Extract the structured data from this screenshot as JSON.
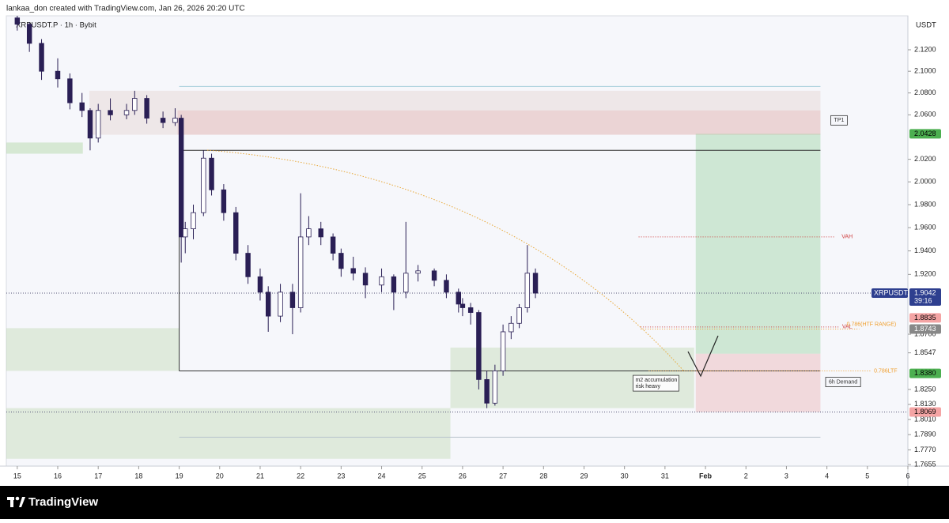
{
  "header": {
    "credit": "lankaa_don created with TradingView.com, Jan 26, 2026 20:20 UTC"
  },
  "footer": {
    "brand": "TradingView"
  },
  "chart_data": {
    "type": "candlestick",
    "title": "XRPUSDT.P · 1h · Bybit",
    "y_unit": "USDT",
    "log": true,
    "up_color": "#ffffff",
    "down_color": "#2a1f55",
    "ylim": [
      1.7643,
      2.152
    ],
    "xlim": [
      -0.27,
      22
    ],
    "yticks": [
      {
        "value": 2.12,
        "label": "2.1200"
      },
      {
        "value": 2.1,
        "label": "2.1000"
      },
      {
        "value": 2.08,
        "label": "2.0800"
      },
      {
        "value": 2.06,
        "label": "2.0600"
      },
      {
        "value": 2.02,
        "label": "2.0200"
      },
      {
        "value": 2.0,
        "label": "2.0000"
      },
      {
        "value": 1.98,
        "label": "1.9800"
      },
      {
        "value": 1.96,
        "label": "1.9600"
      },
      {
        "value": 1.94,
        "label": "1.9400"
      },
      {
        "value": 1.92,
        "label": "1.9200"
      },
      {
        "value": 1.87,
        "label": "1.8700"
      },
      {
        "value": 1.8547,
        "label": "1.8547"
      },
      {
        "value": 1.825,
        "label": "1.8250"
      },
      {
        "value": 1.813,
        "label": "1.8130"
      },
      {
        "value": 1.801,
        "label": "1.8010"
      },
      {
        "value": 1.789,
        "label": "1.7890"
      },
      {
        "value": 1.777,
        "label": "1.7770"
      },
      {
        "value": 1.7655,
        "label": "1.7655"
      }
    ],
    "xticks": [
      {
        "value": 0,
        "label": "15"
      },
      {
        "value": 1,
        "label": "16"
      },
      {
        "value": 2,
        "label": "17"
      },
      {
        "value": 3,
        "label": "18"
      },
      {
        "value": 4,
        "label": "19"
      },
      {
        "value": 5,
        "label": "20"
      },
      {
        "value": 6,
        "label": "21"
      },
      {
        "value": 7,
        "label": "22"
      },
      {
        "value": 8,
        "label": "23"
      },
      {
        "value": 9,
        "label": "24"
      },
      {
        "value": 10,
        "label": "25"
      },
      {
        "value": 11,
        "label": "26"
      },
      {
        "value": 12,
        "label": "27"
      },
      {
        "value": 13,
        "label": "28"
      },
      {
        "value": 14,
        "label": "29"
      },
      {
        "value": 15,
        "label": "30"
      },
      {
        "value": 16,
        "label": "31"
      },
      {
        "value": 17,
        "label": "Feb"
      },
      {
        "value": 18,
        "label": "2"
      },
      {
        "value": 19,
        "label": "3"
      },
      {
        "value": 20,
        "label": "4"
      },
      {
        "value": 21,
        "label": "5"
      },
      {
        "value": 22,
        "label": "6"
      }
    ],
    "candles": [
      {
        "t": 0,
        "open": 2.15,
        "high": 2.152,
        "low": 2.138,
        "close": 2.144
      },
      {
        "t": 0.3,
        "open": 2.144,
        "high": 2.146,
        "low": 2.118,
        "close": 2.126
      },
      {
        "t": 0.6,
        "open": 2.126,
        "high": 2.13,
        "low": 2.092,
        "close": 2.1
      },
      {
        "t": 1.0,
        "open": 2.1,
        "high": 2.112,
        "low": 2.085,
        "close": 2.093
      },
      {
        "t": 1.3,
        "open": 2.093,
        "high": 2.098,
        "low": 2.065,
        "close": 2.071
      },
      {
        "t": 1.6,
        "open": 2.071,
        "high": 2.08,
        "low": 2.058,
        "close": 2.064
      },
      {
        "t": 1.8,
        "open": 2.064,
        "high": 2.066,
        "low": 2.028,
        "close": 2.039
      },
      {
        "t": 2.0,
        "open": 2.039,
        "high": 2.07,
        "low": 2.035,
        "close": 2.064
      },
      {
        "t": 2.3,
        "open": 2.064,
        "high": 2.075,
        "low": 2.055,
        "close": 2.06
      },
      {
        "t": 2.7,
        "open": 2.06,
        "high": 2.07,
        "low": 2.056,
        "close": 2.064
      },
      {
        "t": 2.9,
        "open": 2.064,
        "high": 2.082,
        "low": 2.06,
        "close": 2.075
      },
      {
        "t": 3.2,
        "open": 2.075,
        "high": 2.078,
        "low": 2.052,
        "close": 2.057
      },
      {
        "t": 3.6,
        "open": 2.057,
        "high": 2.063,
        "low": 2.048,
        "close": 2.053
      },
      {
        "t": 3.9,
        "open": 2.053,
        "high": 2.066,
        "low": 2.05,
        "close": 2.057
      },
      {
        "t": 4.05,
        "open": 2.057,
        "high": 2.06,
        "low": 1.93,
        "close": 1.952
      },
      {
        "t": 4.15,
        "open": 1.952,
        "high": 1.965,
        "low": 1.938,
        "close": 1.959
      },
      {
        "t": 4.35,
        "open": 1.959,
        "high": 1.98,
        "low": 1.95,
        "close": 1.973
      },
      {
        "t": 4.6,
        "open": 1.973,
        "high": 2.028,
        "low": 1.97,
        "close": 2.021
      },
      {
        "t": 4.8,
        "open": 2.021,
        "high": 2.025,
        "low": 1.988,
        "close": 1.993
      },
      {
        "t": 5.1,
        "open": 1.993,
        "high": 1.998,
        "low": 1.966,
        "close": 1.973
      },
      {
        "t": 5.4,
        "open": 1.973,
        "high": 1.978,
        "low": 1.932,
        "close": 1.938
      },
      {
        "t": 5.7,
        "open": 1.938,
        "high": 1.945,
        "low": 1.912,
        "close": 1.918
      },
      {
        "t": 6.0,
        "open": 1.918,
        "high": 1.925,
        "low": 1.898,
        "close": 1.905
      },
      {
        "t": 6.2,
        "open": 1.905,
        "high": 1.91,
        "low": 1.872,
        "close": 1.885
      },
      {
        "t": 6.5,
        "open": 1.885,
        "high": 1.912,
        "low": 1.88,
        "close": 1.905
      },
      {
        "t": 6.8,
        "open": 1.905,
        "high": 1.912,
        "low": 1.87,
        "close": 1.892
      },
      {
        "t": 7.0,
        "open": 1.892,
        "high": 1.99,
        "low": 1.888,
        "close": 1.952
      },
      {
        "t": 7.2,
        "open": 1.952,
        "high": 1.97,
        "low": 1.945,
        "close": 1.959
      },
      {
        "t": 7.5,
        "open": 1.959,
        "high": 1.965,
        "low": 1.945,
        "close": 1.952
      },
      {
        "t": 7.8,
        "open": 1.952,
        "high": 1.955,
        "low": 1.932,
        "close": 1.938
      },
      {
        "t": 8.0,
        "open": 1.938,
        "high": 1.942,
        "low": 1.918,
        "close": 1.925
      },
      {
        "t": 8.3,
        "open": 1.925,
        "high": 1.935,
        "low": 1.915,
        "close": 1.921
      },
      {
        "t": 8.6,
        "open": 1.921,
        "high": 1.926,
        "low": 1.9,
        "close": 1.911
      },
      {
        "t": 9.0,
        "open": 1.911,
        "high": 1.925,
        "low": 1.905,
        "close": 1.918
      },
      {
        "t": 9.3,
        "open": 1.918,
        "high": 1.92,
        "low": 1.89,
        "close": 1.905
      },
      {
        "t": 9.6,
        "open": 1.905,
        "high": 1.965,
        "low": 1.9,
        "close": 1.921
      },
      {
        "t": 9.9,
        "open": 1.921,
        "high": 1.928,
        "low": 1.914,
        "close": 1.923
      },
      {
        "t": 10.3,
        "open": 1.923,
        "high": 1.925,
        "low": 1.91,
        "close": 1.915
      },
      {
        "t": 10.6,
        "open": 1.915,
        "high": 1.92,
        "low": 1.9,
        "close": 1.905
      },
      {
        "t": 10.9,
        "open": 1.905,
        "high": 1.908,
        "low": 1.888,
        "close": 1.895
      },
      {
        "t": 11.0,
        "open": 1.895,
        "high": 1.9,
        "low": 1.885,
        "close": 1.892
      },
      {
        "t": 11.2,
        "open": 1.892,
        "high": 1.896,
        "low": 1.878,
        "close": 1.888
      },
      {
        "t": 11.4,
        "open": 1.888,
        "high": 1.89,
        "low": 1.825,
        "close": 1.833
      },
      {
        "t": 11.6,
        "open": 1.833,
        "high": 1.84,
        "low": 1.81,
        "close": 1.814
      },
      {
        "t": 11.8,
        "open": 1.814,
        "high": 1.845,
        "low": 1.812,
        "close": 1.84
      },
      {
        "t": 12.0,
        "open": 1.84,
        "high": 1.878,
        "low": 1.836,
        "close": 1.872
      },
      {
        "t": 12.2,
        "open": 1.872,
        "high": 1.885,
        "low": 1.866,
        "close": 1.879
      },
      {
        "t": 12.4,
        "open": 1.879,
        "high": 1.895,
        "low": 1.875,
        "close": 1.892
      },
      {
        "t": 12.6,
        "open": 1.892,
        "high": 1.945,
        "low": 1.888,
        "close": 1.921
      },
      {
        "t": 12.8,
        "open": 1.921,
        "high": 1.925,
        "low": 1.9,
        "close": 1.9042
      }
    ],
    "zones": [
      {
        "t0": 1.78,
        "t1": 19.84,
        "p0": 2.042,
        "p1": 2.082,
        "color": "rgba(205,160,150,0.18)"
      },
      {
        "t0": 3.96,
        "t1": 19.84,
        "p0": 2.042,
        "p1": 2.064,
        "color": "rgba(225,140,140,0.2)"
      },
      {
        "t0": -0.27,
        "t1": 1.62,
        "p0": 2.025,
        "p1": 2.035,
        "color": "rgba(140,200,120,0.3)"
      },
      {
        "t0": -0.27,
        "t1": 4.0,
        "p0": 1.84,
        "p1": 1.875,
        "color": "rgba(140,190,110,0.22)"
      },
      {
        "t0": -0.27,
        "t1": 10.7,
        "p0": 1.77,
        "p1": 1.81,
        "color": "rgba(140,190,110,0.22)"
      },
      {
        "t0": 10.7,
        "t1": 16.72,
        "p0": 1.81,
        "p1": 1.859,
        "color": "rgba(140,190,110,0.22)"
      },
      {
        "t0": 16.76,
        "t1": 19.84,
        "p0": 1.854,
        "p1": 2.0428,
        "color": "rgba(120,200,130,0.32)"
      },
      {
        "t0": 16.76,
        "t1": 19.84,
        "p0": 1.8069,
        "p1": 1.854,
        "color": "rgba(230,140,140,0.28)"
      }
    ],
    "levels": [
      {
        "t0": 4.0,
        "t1": 19.84,
        "p": 2.028,
        "color": "#333333",
        "dash": ""
      },
      {
        "t0": 4.0,
        "t1": 19.84,
        "p": 1.84,
        "color": "#333333",
        "dash": ""
      },
      {
        "t0": 4.0,
        "t1": 19.84,
        "p": 2.086,
        "color": "#a8d0dc",
        "dash": ""
      },
      {
        "t0": 4.0,
        "t1": 19.84,
        "p": 1.787,
        "color": "#b8c4cc",
        "dash": ""
      },
      {
        "t0": -0.27,
        "t1": 22,
        "p": 1.9042,
        "color": "#555577",
        "dash": "1 2"
      },
      {
        "t0": -0.27,
        "t1": 22,
        "p": 1.8069,
        "color": "#555577",
        "dash": "1 2"
      },
      {
        "t0": 15.35,
        "t1": 20.2,
        "p": 1.952,
        "color": "#d04040",
        "dash": "1 2"
      },
      {
        "t0": 15.4,
        "t1": 20.3,
        "p": 1.876,
        "color": "#d04040",
        "dash": "1 2"
      },
      {
        "t0": 15.4,
        "t1": 20.8,
        "p": 1.8743,
        "color": "#f0a030",
        "dash": "1 2"
      },
      {
        "t0": 15.6,
        "t1": 21.1,
        "p": 1.84,
        "color": "#f0a030",
        "dash": "1 2"
      }
    ],
    "annotations": [
      {
        "text": "TP1",
        "t": 20.3,
        "p": 2.055,
        "color": "#333333",
        "box": true
      },
      {
        "text": "VAH",
        "t": 20.5,
        "p": 1.952,
        "color": "#d04040",
        "box": false
      },
      {
        "text": "VAL",
        "t": 20.5,
        "p": 1.876,
        "color": "#d04040",
        "box": false
      },
      {
        "text": "0.786(HTF RANGE)",
        "t": 21.1,
        "p": 1.878,
        "color": "#f0a030",
        "box": false
      },
      {
        "text": "0.786LTF",
        "t": 21.45,
        "p": 1.84,
        "color": "#f0a030",
        "box": false
      },
      {
        "text": "6h Demand",
        "t": 20.4,
        "p": 1.831,
        "color": "#333333",
        "box": true
      }
    ],
    "note_box": {
      "lines": [
        "m2 accumulation",
        "risk heavy"
      ],
      "t": 15.25,
      "p": 1.83
    },
    "price_tags": [
      {
        "value": 2.0428,
        "label": "2.0428",
        "color": "#4caf50",
        "text_color": "#000000"
      },
      {
        "value": 1.8835,
        "label": "1.8835",
        "color": "#f4a4a4",
        "text_color": "#000000"
      },
      {
        "value": 1.8743,
        "label": "1.8743",
        "color": "#888888",
        "text_color": "#ffffff"
      },
      {
        "value": 1.838,
        "label": "1.8380",
        "color": "#4caf50",
        "text_color": "#000000"
      },
      {
        "value": 1.8069,
        "label": "1.8069",
        "color": "#f4a4a4",
        "text_color": "#000000"
      }
    ],
    "last_price": {
      "symbol": "XRPUSDT.P",
      "value": 1.9042,
      "label": "1.9042",
      "countdown": "39:16",
      "color": "#2e3f8f"
    }
  }
}
